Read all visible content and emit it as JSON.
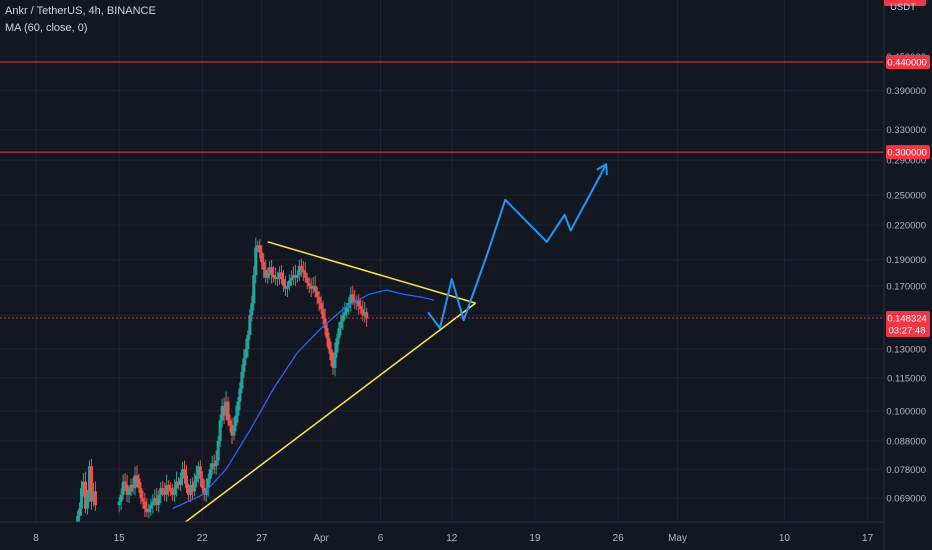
{
  "header": {
    "symbol_line": "Ankr / TetherUS, 4h, BINANCE",
    "indicator_line": "MA (60, close, 0)"
  },
  "currency_label": "USDT",
  "colors": {
    "background": "#131722",
    "grid": "#1f2430",
    "text": "#b2b5be",
    "candle_up": "#26a69a",
    "candle_down": "#ef5350",
    "ma_line": "#2962ff",
    "triangle": "#ffeb3b",
    "projection": "#2196f3",
    "level_line": "#f23645",
    "price_tag": "#f23645"
  },
  "chart_data": {
    "type": "candlestick",
    "y_scale": "log",
    "y_ticks": [
      "0.450000",
      "0.390000",
      "0.330000",
      "0.290000",
      "0.250000",
      "0.220000",
      "0.190000",
      "0.170000",
      "0.150000",
      "0.130000",
      "0.115000",
      "0.100000",
      "0.088000",
      "0.078000",
      "0.069000"
    ],
    "y_tick_values": [
      0.45,
      0.39,
      0.33,
      0.29,
      0.25,
      0.22,
      0.19,
      0.17,
      0.15,
      0.13,
      0.115,
      0.1,
      0.088,
      0.078,
      0.069
    ],
    "x_ticks": [
      "8",
      "15",
      "22",
      "27",
      "Apr",
      "6",
      "12",
      "19",
      "26",
      "May",
      "10",
      "17"
    ],
    "x_tick_dates": [
      "2021-03-08",
      "2021-03-15",
      "2021-03-22",
      "2021-03-27",
      "2021-04-01",
      "2021-04-06",
      "2021-04-12",
      "2021-04-19",
      "2021-04-26",
      "2021-05-01",
      "2021-05-10",
      "2021-05-17"
    ],
    "horizontal_levels": [
      {
        "price": 0.44,
        "label": "0.440000"
      },
      {
        "price": 0.3,
        "label": "0.300000"
      }
    ],
    "last_price": {
      "price": 0.148324,
      "label": "0.148324",
      "countdown": "03:27:48"
    },
    "candle_closes": [
      [
        0.064,
        0.066,
        0.072,
        0.074,
        0.066,
        0.07,
        0.079,
        0.068,
        0.071,
        0.067
      ],
      [
        0.068,
        0.07,
        0.074,
        0.073,
        0.07,
        0.071,
        0.073,
        0.072,
        0.076,
        0.075,
        0.072,
        0.069,
        0.068,
        0.066,
        0.065,
        0.066,
        0.067,
        0.068,
        0.069,
        0.067,
        0.07,
        0.072,
        0.071,
        0.07,
        0.073,
        0.072,
        0.071,
        0.07,
        0.072,
        0.074
      ],
      [
        0.073,
        0.075,
        0.078,
        0.076,
        0.072,
        0.07,
        0.073,
        0.071,
        0.074,
        0.076,
        0.079,
        0.075,
        0.072,
        0.07,
        0.072,
        0.075,
        0.078,
        0.08,
        0.079,
        0.081,
        0.088,
        0.096,
        0.102,
        0.098,
        0.104,
        0.096,
        0.094,
        0.09,
        0.094,
        0.098
      ],
      [
        0.104,
        0.11,
        0.118,
        0.125,
        0.13,
        0.138,
        0.15,
        0.158,
        0.178,
        0.2,
        0.202,
        0.196,
        0.188,
        0.182,
        0.176,
        0.18,
        0.184,
        0.178,
        0.176,
        0.175,
        0.177,
        0.18,
        0.175,
        0.17,
        0.168,
        0.17,
        0.174,
        0.176,
        0.178,
        0.176
      ],
      [
        0.178,
        0.185,
        0.182,
        0.18,
        0.176,
        0.172,
        0.17,
        0.168,
        0.17,
        0.166,
        0.162,
        0.158,
        0.154,
        0.148,
        0.142,
        0.136,
        0.13,
        0.124,
        0.12,
        0.128,
        0.136,
        0.142,
        0.146,
        0.15,
        0.152,
        0.155,
        0.158,
        0.164,
        0.16,
        0.158,
        0.16,
        0.156,
        0.154,
        0.15,
        0.152,
        0.148
      ]
    ],
    "ma_series": [
      [
        "2021-03-19T12:00",
        0.066
      ],
      [
        "2021-03-22T00:00",
        0.07
      ],
      [
        "2021-03-24T00:00",
        0.078
      ],
      [
        "2021-03-26T00:00",
        0.092
      ],
      [
        "2021-03-28T00:00",
        0.11
      ],
      [
        "2021-03-30T00:00",
        0.128
      ],
      [
        "2021-04-01T00:00",
        0.142
      ],
      [
        "2021-04-03T00:00",
        0.155
      ],
      [
        "2021-04-05T00:00",
        0.164
      ],
      [
        "2021-04-06T12:00",
        0.167
      ],
      [
        "2021-04-08T00:00",
        0.164
      ],
      [
        "2021-04-09T12:00",
        0.162
      ],
      [
        "2021-04-10T12:00",
        0.16
      ]
    ],
    "triangle": {
      "upper": [
        [
          "2021-03-27T12:00",
          0.205
        ],
        [
          "2021-04-14T00:00",
          0.158
        ]
      ],
      "lower": [
        [
          "2021-03-20T00:00",
          0.061
        ],
        [
          "2021-04-14T00:00",
          0.158
        ]
      ]
    },
    "projection_path": [
      [
        "2021-04-10T00:00",
        0.152
      ],
      [
        "2021-04-11T00:00",
        0.142
      ],
      [
        "2021-04-12T00:00",
        0.175
      ],
      [
        "2021-04-13T00:00",
        0.147
      ],
      [
        "2021-04-15T00:00",
        0.195
      ],
      [
        "2021-04-16T12:00",
        0.245
      ],
      [
        "2021-04-20T00:00",
        0.205
      ],
      [
        "2021-04-21T12:00",
        0.23
      ],
      [
        "2021-04-22T00:00",
        0.215
      ],
      [
        "2021-04-25T00:00",
        0.285
      ]
    ]
  }
}
